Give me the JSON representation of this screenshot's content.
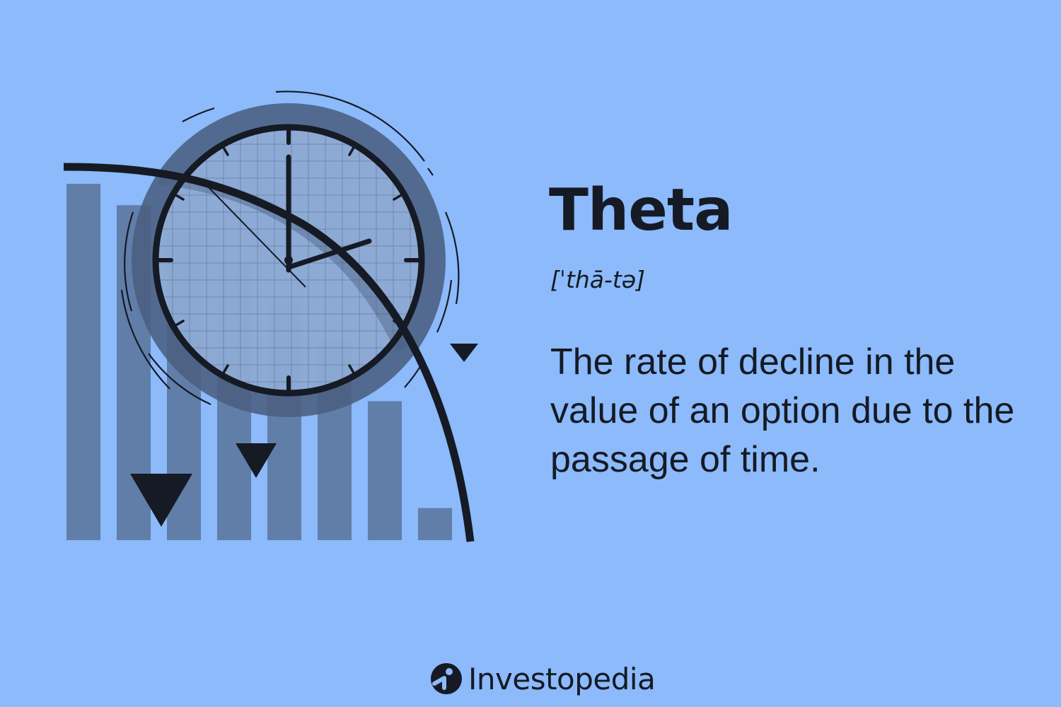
{
  "colors": {
    "background": "#8cbafb",
    "bar": "#617ea8",
    "ink": "#151a24",
    "clock_ring": "#4a5f80",
    "clock_face": "#a3c4f0"
  },
  "illustration": {
    "icons": [
      "declining-bars-icon",
      "clock-icon",
      "down-triangle-icon"
    ],
    "bar_levels": [
      1.0,
      0.94,
      0.86,
      0.78,
      0.67,
      0.56,
      0.39,
      0.09
    ],
    "clock_time": "2:00"
  },
  "term": {
    "title": "Theta",
    "pronunciation": "[ˈthā-tə]",
    "definition": "The rate of decline in the value of an option due to the passage of time."
  },
  "brand": {
    "name": "Investopedia",
    "logo_icon": "investopedia-logo-icon"
  }
}
